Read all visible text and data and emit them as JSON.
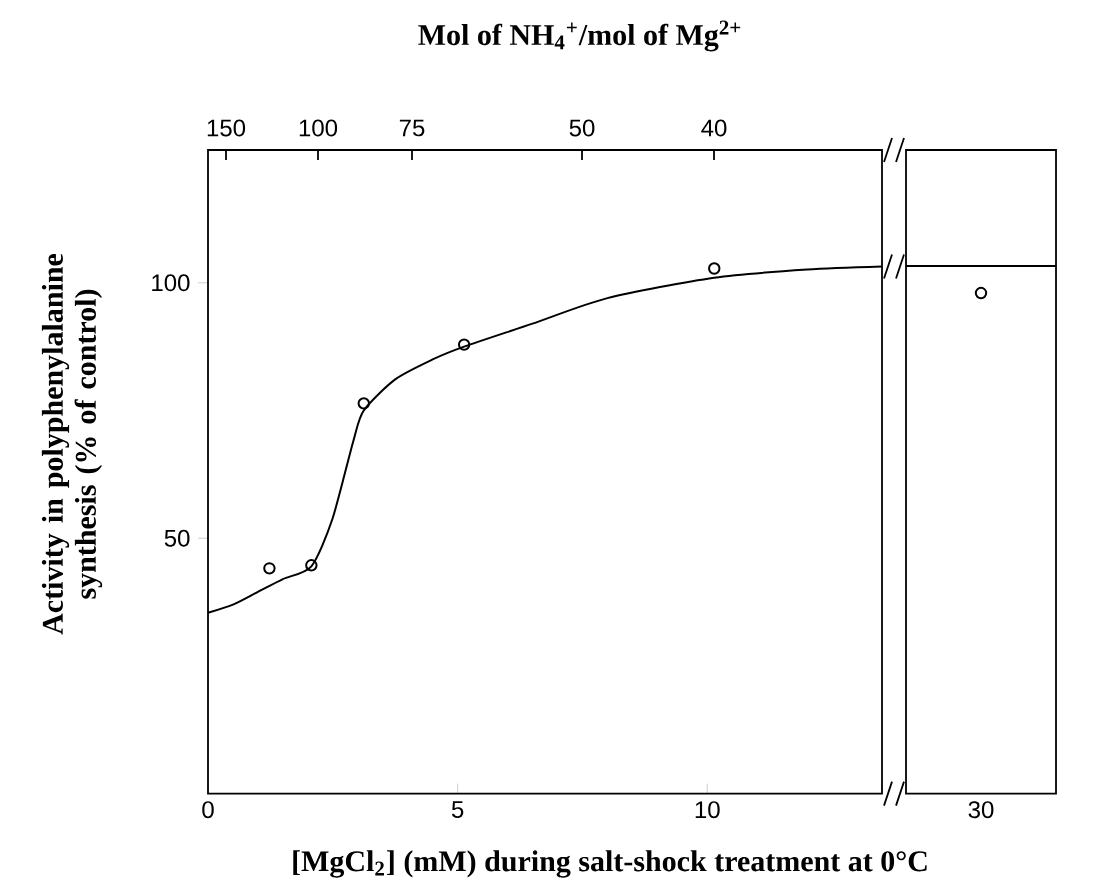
{
  "chart_data": [
    {
      "type": "scatter",
      "xlabel": "[MgCl$_{2}$] (mM) during salt-shock treatment at 0°C",
      "ylabel": "Activity in polyphenylalanine synthesis (% of control)",
      "x2label": "Mol of NH$_{4}$$^{+}$/mol of Mg$^{2+}$",
      "annotations": [
        "150",
        "100",
        "75",
        "50",
        "40"
      ],
      "xlim": [
        0,
        13.5
      ],
      "xticks": [
        0,
        5,
        10
      ],
      "ylim": [
        0,
        126
      ],
      "yticks": [
        50,
        100
      ],
      "series": [
        {
          "color": "#000000",
          "marker": "circle",
          "x": [
            1.23,
            2.07,
            3.12,
            5.13,
            10.14
          ],
          "values": [
            44.1,
            44.7,
            76.4,
            87.9,
            102.8
          ]
        },
        {
          "type": "line",
          "color": "#000000",
          "marker": "none",
          "line_style": "solid",
          "x": [
            0,
            0.5,
            1.0,
            1.5,
            2.07,
            2.49,
            2.91,
            3.12,
            3.75,
            4.5,
            5.13,
            6.5,
            8,
            10.14,
            12,
            13.5
          ],
          "values": [
            35.4,
            37,
            39.5,
            42,
            44.5,
            53.7,
            69,
            75,
            81.1,
            85,
            87.5,
            92,
            97,
            101,
            102.6,
            103.2
          ]
        }
      ]
    },
    {
      "type": "scatter",
      "categories": [
        "30"
      ],
      "ylim": [
        0,
        126
      ],
      "tick_labels": "x",
      "ref_lines": [
        {
          "axis": "y",
          "value": 103.3,
          "color": "#000000",
          "line_style": "solid"
        }
      ],
      "series": [
        {
          "color": "#000000",
          "marker": "circle",
          "values": [
            98.0
          ]
        }
      ]
    }
  ]
}
